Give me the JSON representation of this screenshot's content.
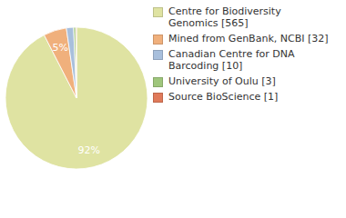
{
  "chart_data": {
    "type": "pie",
    "categories": [
      "Centre for Biodiversity Genomics [565]",
      "Mined from GenBank, NCBI [32]",
      "Canadian Centre for DNA Barcoding [10]",
      "University of Oulu [3]",
      "Source BioScience [1]"
    ],
    "values": [
      92.47,
      5.24,
      1.64,
      0.49,
      0.16
    ],
    "value_labels": [
      "92%",
      "5%",
      null,
      null,
      null
    ],
    "data_labels": true,
    "colors": [
      "#dfe3a2",
      "#f0b07c",
      "#a8bfdc",
      "#9fc67c",
      "#e07a5a"
    ],
    "legend": "right"
  }
}
